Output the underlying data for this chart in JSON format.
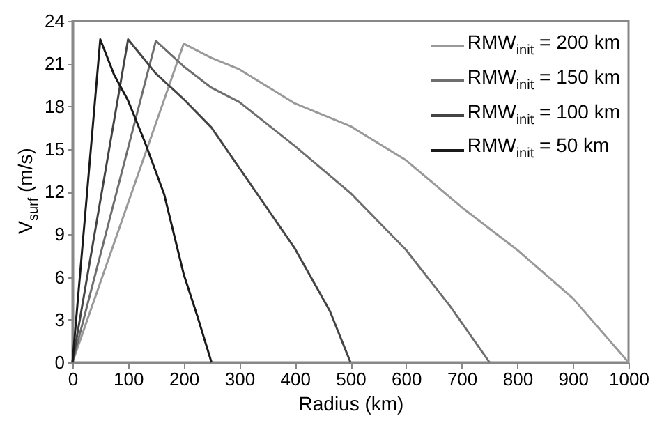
{
  "chart_data": {
    "type": "line",
    "xlabel": "Radius (km)",
    "ylabel": "V$_{surf}$ (m/s)",
    "xlim": [
      0,
      1000
    ],
    "xticks": [
      0,
      100,
      200,
      300,
      400,
      500,
      600,
      700,
      800,
      900,
      1000
    ],
    "ylim": [
      0,
      24
    ],
    "yticks": [
      0,
      3,
      6,
      9,
      12,
      15,
      18,
      21,
      24
    ],
    "grid": false,
    "legend": "top right",
    "marker": "none",
    "line_style": "solid",
    "series": [
      {
        "name": "RMW$_{init}$ = 200 km",
        "color": "#999999",
        "x": [
          0,
          200,
          250,
          300,
          350,
          400,
          500,
          600,
          700,
          800,
          900,
          1000
        ],
        "values": [
          0,
          22.4,
          21.4,
          20.6,
          19.4,
          18.2,
          16.6,
          14.2,
          10.9,
          7.9,
          4.5,
          0
        ]
      },
      {
        "name": "RMW$_{init}$ = 150 km",
        "color": "#6e6e6e",
        "x": [
          0,
          150,
          200,
          250,
          300,
          400,
          500,
          600,
          680,
          750
        ],
        "values": [
          0,
          22.6,
          20.8,
          19.3,
          18.3,
          15.2,
          11.9,
          7.9,
          3.9,
          0
        ]
      },
      {
        "name": "RMW$_{init}$ = 100 km",
        "color": "#444444",
        "x": [
          0,
          100,
          150,
          200,
          250,
          333,
          400,
          463,
          500
        ],
        "values": [
          0,
          22.7,
          20.3,
          18.5,
          16.5,
          11.8,
          8,
          3.6,
          0
        ]
      },
      {
        "name": "RMW$_{init}$ = 50 km",
        "color": "#1a1a1a",
        "x": [
          0,
          50,
          75,
          100,
          130,
          165,
          200,
          225,
          250
        ],
        "values": [
          0,
          22.7,
          20.2,
          18.4,
          15.5,
          11.8,
          6.2,
          3.2,
          0
        ]
      }
    ]
  }
}
